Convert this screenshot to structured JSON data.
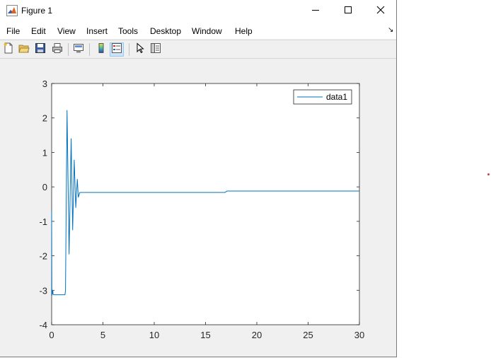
{
  "window": {
    "title": "Figure 1",
    "app_icon": "matlab-icon",
    "controls": [
      "minimize-icon",
      "maximize-icon",
      "close-icon"
    ]
  },
  "menubar": {
    "items": [
      "File",
      "Edit",
      "View",
      "Insert",
      "Tools",
      "Desktop",
      "Window",
      "Help"
    ],
    "overflow_icon": "dock-arrow-icon"
  },
  "toolbar": {
    "buttons": [
      "new-figure-icon",
      "open-file-icon",
      "save-icon",
      "print-icon",
      "link-plot-icon",
      "colorbar-icon",
      "legend-icon",
      "edit-plot-icon",
      "property-inspector-icon"
    ],
    "active": "legend-icon"
  },
  "chart_data": {
    "type": "line",
    "title": "",
    "xlabel": "",
    "ylabel": "",
    "xlim": [
      0,
      30
    ],
    "ylim": [
      -4,
      3
    ],
    "xticks": [
      "0",
      "5",
      "10",
      "15",
      "20",
      "25",
      "30"
    ],
    "yticks": [
      "3",
      "2",
      "1",
      "0",
      "-1",
      "-2",
      "-3",
      "-4"
    ],
    "grid": false,
    "legend": {
      "position": "top-right",
      "entries": [
        "data1"
      ]
    },
    "series": [
      {
        "name": "data1",
        "color": "#0072bd",
        "x": [
          0,
          0.02,
          0.04,
          0.06,
          0.08,
          0.1,
          0.12,
          0.14,
          0.2,
          1.3,
          1.35,
          1.5,
          1.7,
          1.9,
          2.05,
          2.2,
          2.35,
          2.5,
          2.6,
          2.75,
          3.0,
          5,
          10,
          15,
          16.9,
          17.0,
          17.1,
          20,
          25,
          30
        ],
        "y": [
          -0.7,
          -3.15,
          -3.05,
          -3.0,
          -3.1,
          -3.05,
          -3.02,
          -3.12,
          -3.13,
          -3.13,
          -3.0,
          2.22,
          -1.95,
          1.4,
          -1.25,
          0.78,
          -0.6,
          0.22,
          -0.3,
          -0.16,
          -0.16,
          -0.16,
          -0.16,
          -0.16,
          -0.16,
          -0.14,
          -0.12,
          -0.12,
          -0.12,
          -0.12
        ]
      }
    ]
  }
}
